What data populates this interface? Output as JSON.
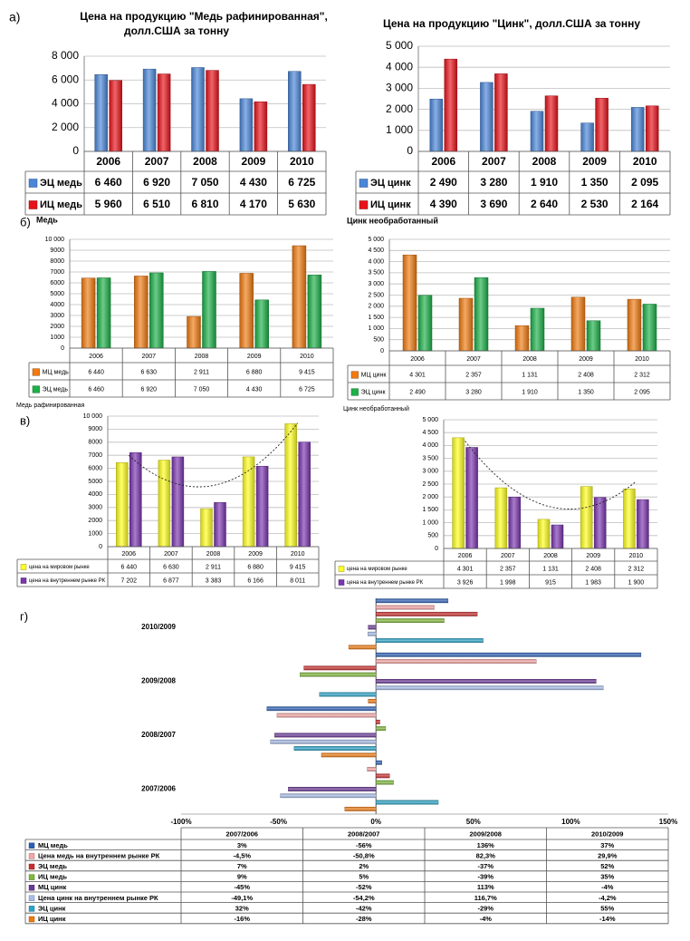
{
  "section_labels": {
    "a": "а)",
    "b": "б)",
    "v": "в)",
    "g": "г)"
  },
  "colors": {
    "blue": "#4a86d8",
    "red": "#e8121a",
    "orange": "#f07a10",
    "green": "#1cb048",
    "yellow": "#ffff1e",
    "purple": "#7a35b0",
    "teal": "#2aa3c8",
    "lightblue": "#a7bde8",
    "darkpurple": "#6a3896",
    "olive": "#7fb83a",
    "darkred": "#c92d2d",
    "pink": "#f5a5a5",
    "navy": "#2a5fb5"
  },
  "chart_data": [
    {
      "id": "a1",
      "type": "bar",
      "title": "Цена на продукцию  \"Медь рафинированная\", долл.США за тонну",
      "categories": [
        "2006",
        "2007",
        "2008",
        "2009",
        "2010"
      ],
      "ylim": [
        0,
        8000
      ],
      "yticks": [
        "0",
        "2 000",
        "4 000",
        "6 000",
        "8 000"
      ],
      "series": [
        {
          "name": "ЭЦ медь",
          "color": "blue",
          "values": [
            6460,
            6920,
            7050,
            4430,
            6725
          ],
          "labels": [
            "6 460",
            "6 920",
            "7 050",
            "4 430",
            "6 725"
          ]
        },
        {
          "name": "ИЦ медь",
          "color": "red",
          "values": [
            5960,
            6510,
            6810,
            4170,
            5630
          ],
          "labels": [
            "5 960",
            "6 510",
            "6 810",
            "4 170",
            "5 630"
          ]
        }
      ]
    },
    {
      "id": "a2",
      "type": "bar",
      "title": "Цена на продукцию  \"Цинк\", долл.США за тонну",
      "categories": [
        "2006",
        "2007",
        "2008",
        "2009",
        "2010"
      ],
      "ylim": [
        0,
        5000
      ],
      "yticks": [
        "0",
        "1 000",
        "2 000",
        "3 000",
        "4 000",
        "5 000"
      ],
      "series": [
        {
          "name": "ЭЦ цинк",
          "color": "blue",
          "values": [
            2490,
            3280,
            1910,
            1350,
            2095
          ],
          "labels": [
            "2 490",
            "3 280",
            "1 910",
            "1 350",
            "2 095"
          ]
        },
        {
          "name": "ИЦ цинк",
          "color": "red",
          "values": [
            4390,
            3690,
            2640,
            2530,
            2164
          ],
          "labels": [
            "4 390",
            "3 690",
            "2 640",
            "2 530",
            "2 164"
          ]
        }
      ]
    },
    {
      "id": "b1",
      "type": "bar",
      "title": "Медь",
      "categories": [
        "2006",
        "2007",
        "2008",
        "2009",
        "2010"
      ],
      "ylim": [
        0,
        10000
      ],
      "yticks": [
        "0",
        "1000",
        "2000",
        "3000",
        "4000",
        "5000",
        "6000",
        "7000",
        "8000",
        "9000",
        "10 000"
      ],
      "series": [
        {
          "name": "МЦ медь",
          "color": "orange",
          "values": [
            6440,
            6630,
            2911,
            6880,
            9415
          ],
          "labels": [
            "6 440",
            "6 630",
            "2 911",
            "6 880",
            "9 415"
          ]
        },
        {
          "name": "ЭЦ медь",
          "color": "green",
          "values": [
            6460,
            6920,
            7050,
            4430,
            6725
          ],
          "labels": [
            "6 460",
            "6 920",
            "7 050",
            "4 430",
            "6 725"
          ]
        }
      ]
    },
    {
      "id": "b2",
      "type": "bar",
      "title": "Цинк необработанный",
      "categories": [
        "2006",
        "2007",
        "2008",
        "2009",
        "2010"
      ],
      "ylim": [
        0,
        5000
      ],
      "yticks": [
        "0",
        "500",
        "1 000",
        "1 500",
        "2 000",
        "2 500",
        "3 000",
        "3 500",
        "4 000",
        "4 500",
        "5 000"
      ],
      "series": [
        {
          "name": "МЦ цинк",
          "color": "orange",
          "values": [
            4301,
            2357,
            1131,
            2408,
            2312
          ],
          "labels": [
            "4 301",
            "2 357",
            "1 131",
            "2 408",
            "2 312"
          ]
        },
        {
          "name": "ЭЦ цинк",
          "color": "green",
          "values": [
            2490,
            3280,
            1910,
            1350,
            2095
          ],
          "labels": [
            "2 490",
            "3 280",
            "1 910",
            "1 350",
            "2 095"
          ]
        }
      ]
    },
    {
      "id": "v1",
      "type": "bar",
      "title": "Медь рафинированная",
      "categories": [
        "2006",
        "2007",
        "2008",
        "2009",
        "2010"
      ],
      "ylim": [
        0,
        10000
      ],
      "yticks": [
        "0",
        "1000",
        "2000",
        "3000",
        "4000",
        "5000",
        "6000",
        "7000",
        "8000",
        "9000",
        "10 000"
      ],
      "series": [
        {
          "name": "цена на мировом рынке",
          "color": "yellow",
          "values": [
            6440,
            6630,
            2911,
            6880,
            9415
          ],
          "labels": [
            "6 440",
            "6 630",
            "2 911",
            "6 880",
            "9 415"
          ]
        },
        {
          "name": "цена на внутреннем рынке РК",
          "color": "purple",
          "values": [
            7202,
            6877,
            3383,
            6166,
            8011
          ],
          "labels": [
            "7 202",
            "6 877",
            "3 383",
            "6 166",
            "8 011"
          ]
        }
      ],
      "trendline": {
        "series": 0,
        "style": "dotted",
        "order": 2
      }
    },
    {
      "id": "v2",
      "type": "bar",
      "title": "Цинк необработанный",
      "categories": [
        "2006",
        "2007",
        "2008",
        "2009",
        "2010"
      ],
      "ylim": [
        0,
        5000
      ],
      "yticks": [
        "0",
        "500",
        "1 000",
        "1 500",
        "2 000",
        "2 500",
        "3 000",
        "3 500",
        "4 000",
        "4 500",
        "5 000"
      ],
      "series": [
        {
          "name": "цена на мировом рынке",
          "color": "yellow",
          "values": [
            4301,
            2357,
            1131,
            2408,
            2312
          ],
          "labels": [
            "4 301",
            "2 357",
            "1 131",
            "2 408",
            "2 312"
          ]
        },
        {
          "name": "цена на внутреннем рынке РК",
          "color": "purple",
          "values": [
            3926,
            1998,
            915,
            1983,
            1900
          ],
          "labels": [
            "3 926",
            "1 998",
            "915",
            "1 983",
            "1 900"
          ]
        }
      ],
      "trendline": {
        "series": 0,
        "style": "dotted",
        "order": 2
      }
    },
    {
      "id": "g",
      "type": "bar",
      "orientation": "horizontal",
      "categories": [
        "2007/2006",
        "2008/2007",
        "2009/2008",
        "2010/2009"
      ],
      "xlim": [
        -100,
        150
      ],
      "xticks": [
        "-100%",
        "-50%",
        "0%",
        "50%",
        "100%",
        "150%"
      ],
      "series": [
        {
          "name": "ИЦ цинк",
          "color": "orange",
          "values": [
            -16,
            -28,
            -4,
            -14
          ],
          "labels": [
            "-16%",
            "-28%",
            "-4%",
            "-14%"
          ]
        },
        {
          "name": "ЭЦ цинк",
          "color": "teal",
          "values": [
            32,
            -42,
            -29,
            55
          ],
          "labels": [
            "32%",
            "-42%",
            "-29%",
            "55%"
          ]
        },
        {
          "name": "Цена цинк на внутреннем рынке РК",
          "color": "lightblue",
          "values": [
            -49.1,
            -54.2,
            116.7,
            -4.2
          ],
          "labels": [
            "-49,1%",
            "-54,2%",
            "116,7%",
            "-4,2%"
          ]
        },
        {
          "name": "МЦ цинк",
          "color": "darkpurple",
          "values": [
            -45,
            -52,
            113,
            -4
          ],
          "labels": [
            "-45%",
            "-52%",
            "113%",
            "-4%"
          ]
        },
        {
          "name": "ИЦ медь",
          "color": "olive",
          "values": [
            9,
            5,
            -39,
            35
          ],
          "labels": [
            "9%",
            "5%",
            "-39%",
            "35%"
          ]
        },
        {
          "name": "ЭЦ медь",
          "color": "darkred",
          "values": [
            7,
            2,
            -37,
            52
          ],
          "labels": [
            "7%",
            "2%",
            "-37%",
            "52%"
          ]
        },
        {
          "name": "Цена медь на внутреннем рынке РК",
          "color": "pink",
          "values": [
            -4.5,
            -50.8,
            82.3,
            29.9
          ],
          "labels": [
            "-4,5%",
            "-50,8%",
            "82,3%",
            "29,9%"
          ]
        },
        {
          "name": "МЦ медь",
          "color": "navy",
          "values": [
            3,
            -56,
            136,
            37
          ],
          "labels": [
            "3%",
            "-56%",
            "136%",
            "37%"
          ]
        }
      ]
    }
  ]
}
